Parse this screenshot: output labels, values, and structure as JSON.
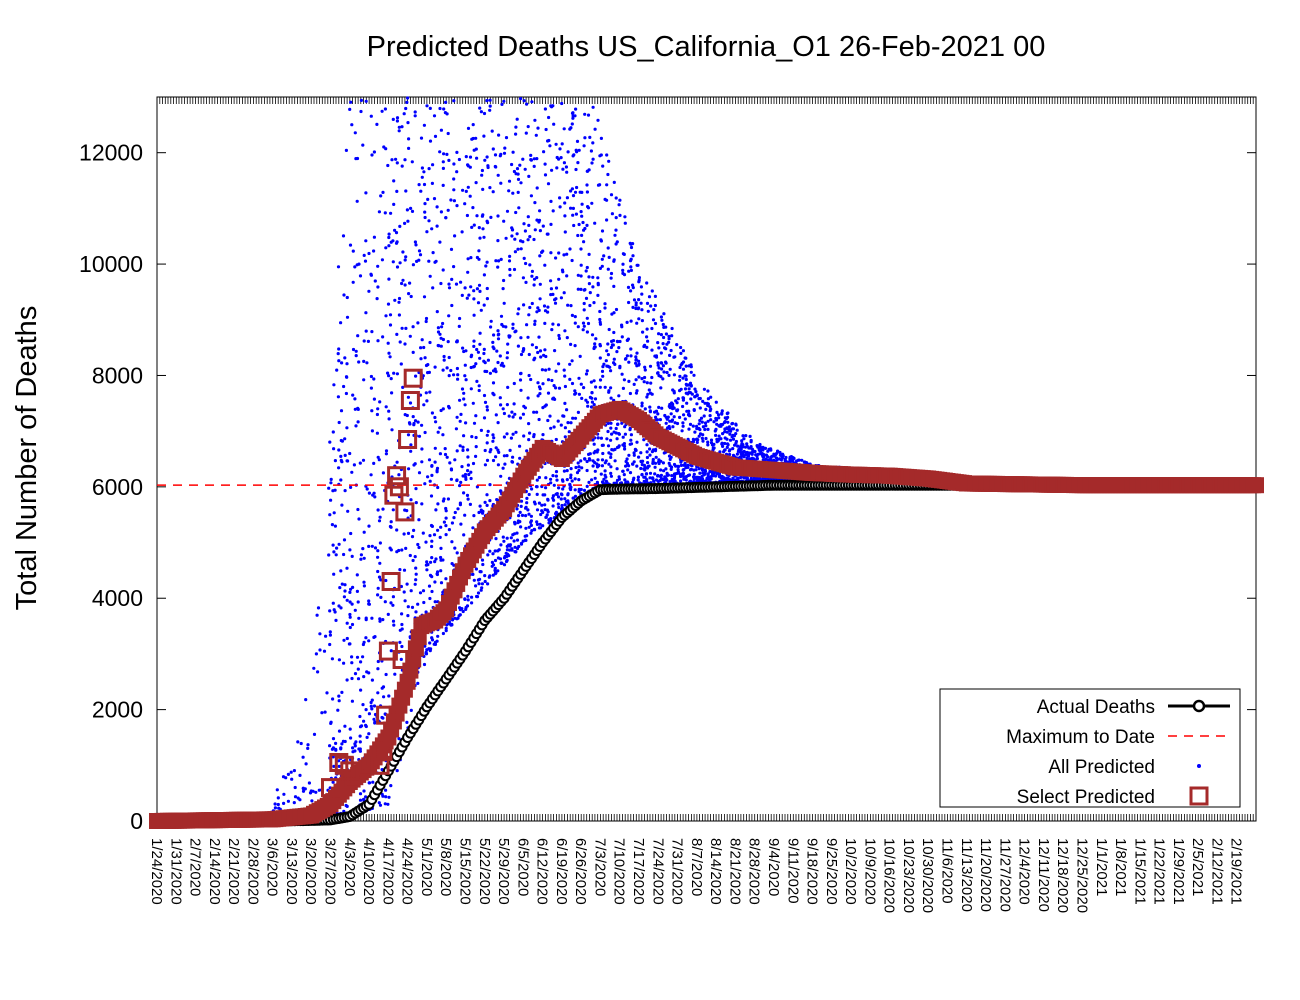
{
  "chart_data": {
    "type": "scatter",
    "title": "Predicted Deaths US_California_O1 26-Feb-2021 00",
    "ylabel": "Total Number of Deaths",
    "xlabel": "",
    "x_start": "1/24/2020",
    "x_end": "2/26/2021",
    "ylim": [
      0,
      13000
    ],
    "yticks": [
      0,
      2000,
      4000,
      6000,
      8000,
      10000,
      12000
    ],
    "xtick_labels": [
      "1/24/2020",
      "1/31/2020",
      "2/7/2020",
      "2/14/2020",
      "2/21/2020",
      "2/28/2020",
      "3/6/2020",
      "3/13/2020",
      "3/20/2020",
      "3/27/2020",
      "4/3/2020",
      "4/10/2020",
      "4/17/2020",
      "4/24/2020",
      "5/1/2020",
      "5/8/2020",
      "5/15/2020",
      "5/22/2020",
      "5/29/2020",
      "6/5/2020",
      "6/12/2020",
      "6/19/2020",
      "6/26/2020",
      "7/3/2020",
      "7/10/2020",
      "7/17/2020",
      "7/24/2020",
      "7/31/2020",
      "8/7/2020",
      "8/14/2020",
      "8/21/2020",
      "8/28/2020",
      "9/4/2020",
      "9/11/2020",
      "9/18/2020",
      "9/25/2020",
      "10/2/2020",
      "10/9/2020",
      "10/16/2020",
      "10/23/2020",
      "10/30/2020",
      "11/6/2020",
      "11/13/2020",
      "11/20/2020",
      "11/27/2020",
      "12/4/2020",
      "12/11/2020",
      "12/18/2020",
      "12/25/2020",
      "1/1/2021",
      "1/8/2021",
      "1/15/2021",
      "1/22/2021",
      "1/29/2021",
      "2/5/2021",
      "2/12/2021",
      "2/19/2021"
    ],
    "grid": false,
    "legend_position": "bottom-right",
    "maximum_to_date": 6030,
    "colors": {
      "actual": "#000000",
      "maximum": "#ff0000",
      "all_predicted": "#0000ff",
      "select_predicted": "#a52a2a"
    },
    "legend": [
      {
        "key": "actual",
        "label": "Actual Deaths"
      },
      {
        "key": "maximum",
        "label": "Maximum to Date"
      },
      {
        "key": "all_predicted",
        "label": "All Predicted"
      },
      {
        "key": "select_predicted",
        "label": "Select Predicted"
      }
    ],
    "series": [
      {
        "name": "Actual Deaths",
        "x": [
          "1/24/2020",
          "2/14/2020",
          "3/6/2020",
          "3/20/2020",
          "3/27/2020",
          "4/3/2020",
          "4/10/2020",
          "4/17/2020",
          "4/24/2020",
          "5/1/2020",
          "5/8/2020",
          "5/15/2020",
          "5/22/2020",
          "5/29/2020",
          "6/5/2020",
          "6/12/2020",
          "6/19/2020",
          "6/26/2020",
          "7/3/2020",
          "7/10/2020",
          "7/24/2020",
          "8/7/2020",
          "8/21/2020",
          "9/4/2020",
          "10/2/2020",
          "11/13/2020",
          "12/25/2020",
          "1/22/2021",
          "2/26/2021"
        ],
        "y": [
          0,
          0,
          0,
          10,
          20,
          80,
          300,
          900,
          1500,
          2050,
          2550,
          3050,
          3600,
          4000,
          4500,
          5000,
          5450,
          5750,
          5950,
          5960,
          5970,
          5990,
          6010,
          6030,
          6030,
          6030,
          6030,
          6030,
          6030
        ]
      },
      {
        "name": "Select Predicted",
        "x": [
          "1/24/2020",
          "3/6/2020",
          "3/20/2020",
          "3/27/2020",
          "4/3/2020",
          "4/10/2020",
          "4/17/2020",
          "4/24/2020",
          "4/29/2020",
          "5/1/2020",
          "5/4/2020",
          "5/8/2020",
          "5/15/2020",
          "5/22/2020",
          "5/29/2020",
          "6/5/2020",
          "6/12/2020",
          "6/19/2020",
          "6/26/2020",
          "7/3/2020",
          "7/10/2020",
          "7/17/2020",
          "7/24/2020",
          "8/7/2020",
          "8/21/2020",
          "9/4/2020",
          "9/18/2020",
          "10/2/2020",
          "10/16/2020",
          "10/30/2020",
          "11/13/2020",
          "12/25/2020",
          "1/22/2021",
          "2/26/2021"
        ],
        "y": [
          0,
          30,
          100,
          300,
          700,
          1000,
          1500,
          2500,
          3500,
          3550,
          3600,
          3800,
          4600,
          5200,
          5600,
          6200,
          6700,
          6500,
          6900,
          7300,
          7400,
          7200,
          6900,
          6550,
          6350,
          6300,
          6250,
          6220,
          6200,
          6150,
          6060,
          6030,
          6030,
          6030
        ]
      },
      {
        "name": "Select Predicted (outliers)",
        "x": [
          "3/27/2020",
          "3/30/2020",
          "4/1/2020",
          "4/3/2020",
          "4/14/2020",
          "4/15/2020",
          "4/16/2020",
          "4/17/2020",
          "4/18/2020",
          "4/19/2020",
          "4/20/2020",
          "4/21/2020",
          "4/22/2020",
          "4/23/2020",
          "4/24/2020",
          "4/25/2020",
          "4/26/2020"
        ],
        "y": [
          600,
          1050,
          1000,
          900,
          1000,
          1250,
          1900,
          3050,
          4300,
          5850,
          6200,
          6000,
          2900,
          5550,
          6850,
          7550,
          7950
        ]
      }
    ],
    "all_predicted_envelope": {
      "x": [
        "3/6/2020",
        "3/20/2020",
        "4/3/2020",
        "4/17/2020",
        "5/1/2020",
        "5/15/2020",
        "6/5/2020",
        "6/26/2020",
        "7/3/2020",
        "7/17/2020",
        "8/7/2020",
        "8/28/2020",
        "9/18/2020",
        "10/9/2020",
        "10/30/2020",
        "11/13/2020"
      ],
      "upper": [
        300,
        2500,
        13000,
        13000,
        13000,
        13000,
        13000,
        13000,
        12700,
        10000,
        8000,
        6800,
        6400,
        6300,
        6200,
        6100
      ],
      "lower": [
        0,
        0,
        100,
        300,
        3000,
        3800,
        5000,
        5800,
        6000,
        6000,
        6050,
        6100,
        6100,
        6100,
        6100,
        6050
      ]
    }
  }
}
